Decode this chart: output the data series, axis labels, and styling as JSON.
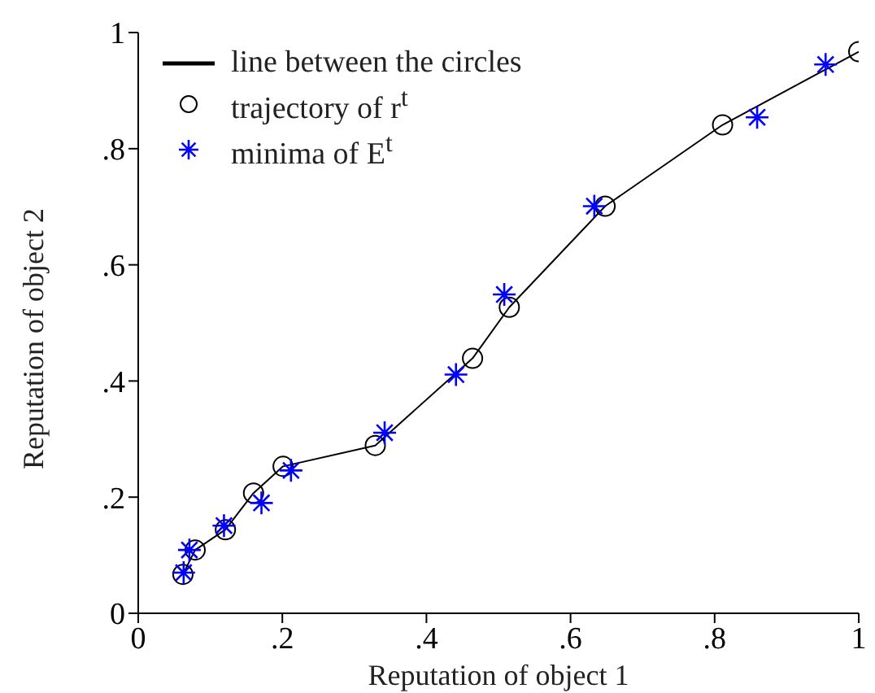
{
  "chart_data": {
    "type": "scatter",
    "xlabel": "Reputation of object 1",
    "ylabel": "Reputation of object 2",
    "xlim": [
      0,
      1
    ],
    "ylim": [
      0,
      1
    ],
    "xticks": [
      0,
      {
        "value": 0.2,
        "label": ".2"
      },
      {
        "value": 0.4,
        "label": ".4"
      },
      {
        "value": 0.6,
        "label": ".6"
      },
      {
        "value": 0.8,
        "label": ".8"
      },
      1
    ],
    "yticks": [
      0,
      {
        "value": 0.2,
        "label": ".2"
      },
      {
        "value": 0.4,
        "label": ".4"
      },
      {
        "value": 0.6,
        "label": ".6"
      },
      {
        "value": 0.8,
        "label": ".8"
      },
      1
    ],
    "grid": false,
    "legend": "top left",
    "series": [
      {
        "name": "line between the circles",
        "type": "line",
        "marker": "none",
        "line_style": "solid",
        "color": "#000000",
        "x": [
          0.062,
          0.079,
          0.121,
          0.16,
          0.201,
          0.329,
          0.464,
          0.515,
          0.648,
          0.811,
          1.0
        ],
        "values": [
          0.067,
          0.109,
          0.144,
          0.207,
          0.253,
          0.289,
          0.439,
          0.527,
          0.701,
          0.841,
          0.967
        ]
      },
      {
        "name": "trajectory of r$^{t}$",
        "marker": "circle",
        "color": "#000000",
        "x": [
          0.062,
          0.079,
          0.121,
          0.16,
          0.201,
          0.329,
          0.464,
          0.515,
          0.648,
          0.811,
          1.0
        ],
        "values": [
          0.067,
          0.109,
          0.144,
          0.207,
          0.253,
          0.289,
          0.439,
          0.527,
          0.701,
          0.841,
          0.967
        ]
      },
      {
        "name": "minima of E$^{t}$",
        "marker": "cross",
        "color": "#0000ff",
        "x": [
          0.063,
          0.071,
          0.119,
          0.171,
          0.212,
          0.342,
          0.441,
          0.508,
          0.633,
          0.859,
          0.954
        ],
        "values": [
          0.07,
          0.109,
          0.151,
          0.19,
          0.246,
          0.311,
          0.411,
          0.549,
          0.701,
          0.854,
          0.945
        ]
      }
    ]
  }
}
